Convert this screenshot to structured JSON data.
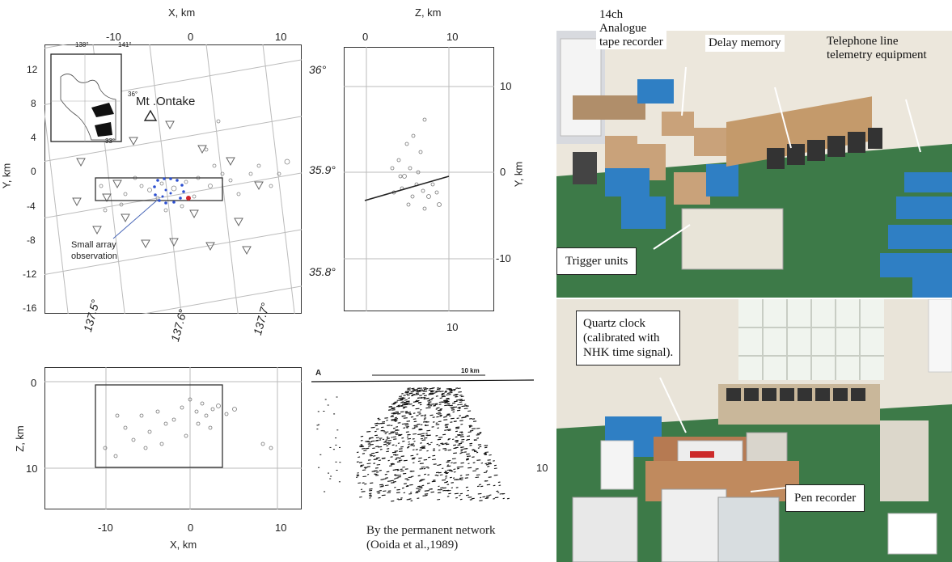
{
  "map_plan": {
    "x_axis_label": "X, km",
    "y_axis_label": "Y, km",
    "x_ticks": [
      "-10",
      "0",
      "10"
    ],
    "y_ticks": [
      "12",
      "8",
      "4",
      "0",
      "-4",
      "-8",
      "-12",
      "-16"
    ],
    "lat_labels": [
      "36°",
      "35.9°",
      "35.8°"
    ],
    "lon_labels": [
      "137.5°",
      "137.6°",
      "137.7°"
    ],
    "volcano_label": "Mt .Ontake",
    "array_label": "Small array\nobservation",
    "inset_lon_labels": [
      "138°",
      "141°"
    ],
    "inset_lat_labels": [
      "36°",
      "33°"
    ]
  },
  "map_section_yz": {
    "x_axis_label": "Z, km",
    "y_axis_label": "Y, km",
    "z_ticks": [
      "0",
      "10"
    ],
    "y_ticks": [
      "10",
      "0",
      "-10"
    ],
    "bottom_tick": "10"
  },
  "map_section_xz": {
    "x_axis_label": "X, km",
    "y_axis_label": "Z, km",
    "x_ticks": [
      "-10",
      "0",
      "10"
    ],
    "z_ticks": [
      "0",
      "10"
    ]
  },
  "permanent_network": {
    "caption": "By the permanent network\n(Ooida et al.,1989)",
    "corner_label": "A",
    "scale_label": "10 km",
    "side_tick": "10"
  },
  "photo_top": {
    "labels": {
      "tape_recorder": "14ch\nAnalogue\ntape recorder",
      "delay_memory": "Delay memory",
      "telemetry": "Telephone line\ntelemetry equipment",
      "trigger": "Trigger units"
    }
  },
  "photo_bottom": {
    "labels": {
      "quartz": "Quartz clock\n(calibrated with\nNHK time signal).",
      "pen": "Pen recorder"
    }
  },
  "colors": {
    "wall": "#ece7dc",
    "floor": "#3d7a48",
    "equipment_blue": "#2f7fc4",
    "box_brown": "#c9a27a",
    "station_blue": "#2c4fd0",
    "event_red": "#d0252b"
  }
}
